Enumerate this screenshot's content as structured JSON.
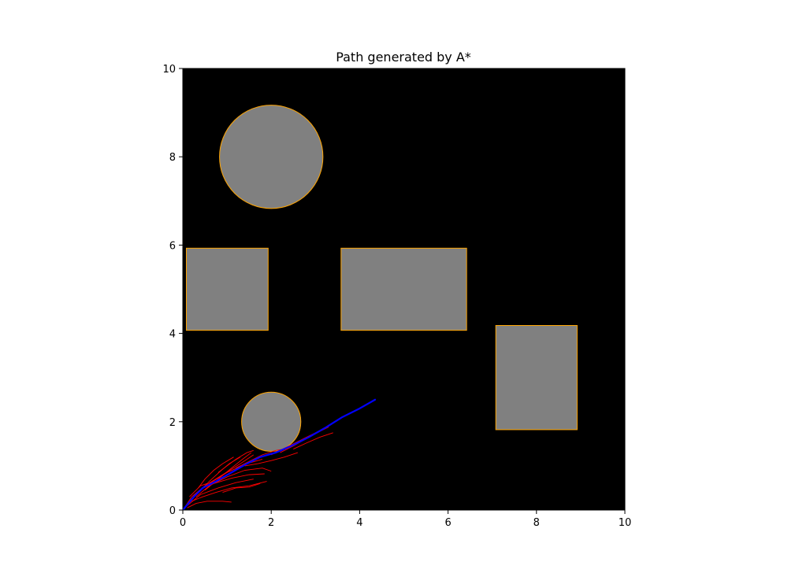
{
  "chart_data": {
    "type": "scatter",
    "title": "Path generated by A*",
    "xlabel": "",
    "ylabel": "",
    "xlim": [
      0,
      10
    ],
    "ylim": [
      0,
      10
    ],
    "xticks": [
      0,
      2,
      4,
      6,
      8,
      10
    ],
    "yticks": [
      0,
      2,
      4,
      6,
      8,
      10
    ],
    "xtick_labels": [
      "0",
      "2",
      "4",
      "6",
      "8",
      "10"
    ],
    "ytick_labels": [
      "0",
      "2",
      "4",
      "6",
      "8",
      "10"
    ],
    "grid": false,
    "colors": {
      "background": "#000000",
      "obstacle_fill": "#808080",
      "obstacle_edge": "#ffa500",
      "explored": "#ff0000",
      "path": "#0000ff"
    },
    "obstacles": [
      {
        "shape": "circle",
        "center": [
          2.0,
          8.0
        ],
        "radius": 1.17
      },
      {
        "shape": "rectangle",
        "xmin": 0.08,
        "ymin": 4.07,
        "xmax": 1.93,
        "ymax": 5.93
      },
      {
        "shape": "rectangle",
        "xmin": 3.58,
        "ymin": 4.07,
        "xmax": 6.42,
        "ymax": 5.93
      },
      {
        "shape": "rectangle",
        "xmin": 7.08,
        "ymin": 1.82,
        "xmax": 8.92,
        "ymax": 4.18
      },
      {
        "shape": "circle",
        "center": [
          2.0,
          2.0
        ],
        "radius": 0.67
      }
    ],
    "explored_branches": [
      [
        [
          0.0,
          0.0
        ],
        [
          0.2,
          0.3
        ],
        [
          0.5,
          0.55
        ],
        [
          0.9,
          0.8
        ],
        [
          1.3,
          1.05
        ],
        [
          1.6,
          1.25
        ]
      ],
      [
        [
          0.1,
          0.1
        ],
        [
          0.4,
          0.35
        ],
        [
          0.8,
          0.5
        ],
        [
          1.2,
          0.62
        ],
        [
          1.6,
          0.7
        ]
      ],
      [
        [
          0.2,
          0.2
        ],
        [
          0.45,
          0.3
        ],
        [
          0.75,
          0.4
        ],
        [
          1.1,
          0.5
        ],
        [
          1.5,
          0.55
        ],
        [
          1.9,
          0.65
        ]
      ],
      [
        [
          0.3,
          0.3
        ],
        [
          0.6,
          0.55
        ],
        [
          1.0,
          0.75
        ],
        [
          1.4,
          0.9
        ],
        [
          1.8,
          0.95
        ],
        [
          2.0,
          0.88
        ]
      ],
      [
        [
          0.5,
          0.45
        ],
        [
          0.8,
          0.7
        ],
        [
          1.1,
          0.95
        ],
        [
          1.35,
          1.15
        ],
        [
          1.55,
          1.3
        ]
      ],
      [
        [
          0.1,
          0.05
        ],
        [
          0.3,
          0.15
        ],
        [
          0.55,
          0.2
        ],
        [
          0.9,
          0.2
        ],
        [
          1.1,
          0.18
        ]
      ],
      [
        [
          0.2,
          0.25
        ],
        [
          0.4,
          0.45
        ],
        [
          0.6,
          0.65
        ],
        [
          0.85,
          0.88
        ],
        [
          1.05,
          1.05
        ],
        [
          1.3,
          1.2
        ]
      ],
      [
        [
          0.6,
          0.6
        ],
        [
          1.0,
          0.85
        ],
        [
          1.45,
          1.05
        ],
        [
          1.8,
          1.15
        ]
      ],
      [
        [
          0.7,
          0.6
        ],
        [
          1.1,
          0.72
        ],
        [
          1.5,
          0.8
        ],
        [
          1.85,
          0.82
        ]
      ],
      [
        [
          1.2,
          0.95
        ],
        [
          1.5,
          1.1
        ],
        [
          1.8,
          1.25
        ],
        [
          2.1,
          1.35
        ],
        [
          2.4,
          1.4
        ]
      ],
      [
        [
          1.4,
          1.0
        ],
        [
          1.7,
          1.05
        ],
        [
          2.0,
          1.12
        ],
        [
          2.3,
          1.2
        ],
        [
          2.6,
          1.3
        ]
      ],
      [
        [
          2.0,
          1.25
        ],
        [
          2.3,
          1.4
        ],
        [
          2.6,
          1.55
        ],
        [
          2.9,
          1.7
        ],
        [
          3.2,
          1.85
        ],
        [
          3.35,
          1.95
        ]
      ],
      [
        [
          2.2,
          1.3
        ],
        [
          2.5,
          1.45
        ],
        [
          2.8,
          1.62
        ],
        [
          3.1,
          1.78
        ],
        [
          3.3,
          1.88
        ]
      ],
      [
        [
          2.5,
          1.38
        ],
        [
          2.8,
          1.52
        ],
        [
          3.1,
          1.65
        ],
        [
          3.4,
          1.75
        ]
      ],
      [
        [
          0.9,
          0.4
        ],
        [
          1.2,
          0.5
        ],
        [
          1.5,
          0.52
        ],
        [
          1.75,
          0.6
        ]
      ],
      [
        [
          0.8,
          0.85
        ],
        [
          1.0,
          1.0
        ],
        [
          1.2,
          1.15
        ],
        [
          1.45,
          1.3
        ],
        [
          1.6,
          1.35
        ]
      ],
      [
        [
          0.35,
          0.5
        ],
        [
          0.5,
          0.7
        ],
        [
          0.7,
          0.9
        ],
        [
          0.9,
          1.05
        ],
        [
          1.15,
          1.2
        ]
      ],
      [
        [
          0.15,
          0.3
        ],
        [
          0.25,
          0.4
        ],
        [
          0.4,
          0.55
        ],
        [
          0.55,
          0.6
        ]
      ]
    ],
    "path": [
      [
        0.0,
        0.0
      ],
      [
        0.25,
        0.3
      ],
      [
        0.45,
        0.5
      ],
      [
        0.75,
        0.65
      ],
      [
        1.1,
        0.85
      ],
      [
        1.45,
        1.05
      ],
      [
        1.75,
        1.2
      ],
      [
        2.1,
        1.3
      ],
      [
        2.45,
        1.45
      ],
      [
        2.85,
        1.65
      ],
      [
        3.25,
        1.88
      ],
      [
        3.6,
        2.1
      ],
      [
        4.0,
        2.3
      ],
      [
        4.35,
        2.5
      ]
    ]
  }
}
